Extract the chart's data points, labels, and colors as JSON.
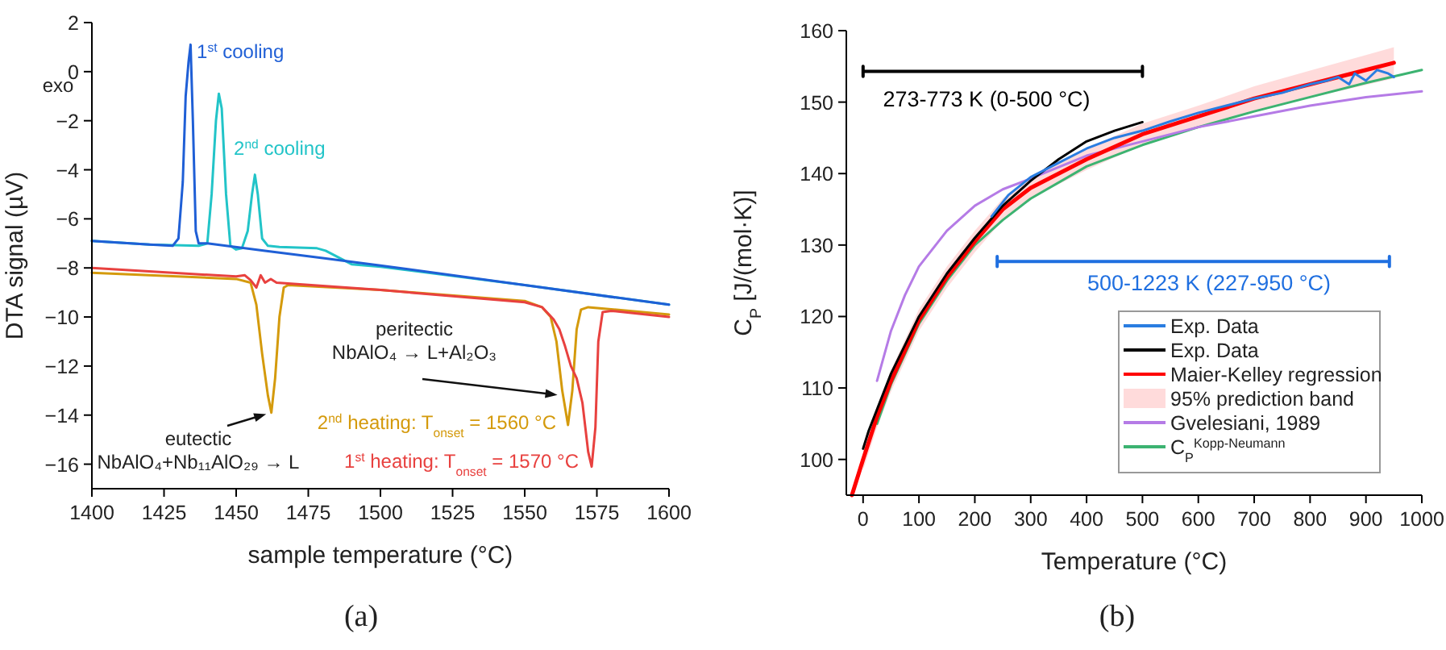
{
  "chart_data": [
    {
      "type": "line",
      "title": "(a)",
      "xlabel": "sample temperature (°C)",
      "ylabel": "DTA signal (µV)",
      "xlim": [
        1400,
        1600
      ],
      "ylim": [
        -17,
        2
      ],
      "xticks": [
        1400,
        1425,
        1450,
        1475,
        1500,
        1525,
        1550,
        1575,
        1600
      ],
      "yticks": [
        {
          "value": -16,
          "label": "−16"
        },
        {
          "value": -14,
          "label": "−14"
        },
        {
          "value": -12,
          "label": "−12"
        },
        {
          "value": -10,
          "label": "−10"
        },
        {
          "value": -8,
          "label": "−8"
        },
        {
          "value": -6,
          "label": "−6"
        },
        {
          "value": -4,
          "label": "−4"
        },
        {
          "value": -2,
          "label": "−2"
        },
        0,
        2
      ],
      "legend": false,
      "line_style": "solid",
      "marker": "none",
      "annotations": [
        "exo",
        {
          "text": "eutectic\nNbAlO₄+Nb₁₁AlO₂₉ → L",
          "x": 1462,
          "y": -13.9
        },
        {
          "text": "peritectic\nNbAlO₄ → L+Al₂O₃",
          "x": 1563,
          "y": -13.2
        }
      ],
      "series": [
        {
          "name": "1$^{st}$ cooling",
          "color": "#1f5fd6",
          "x": [
            1400,
            1420,
            1428,
            1430,
            1431.5,
            1432.5,
            1433.5,
            1434.2,
            1435,
            1436,
            1437,
            1440,
            1460,
            1480,
            1500,
            1550,
            1600
          ],
          "values": [
            -6.9,
            -7.05,
            -7.1,
            -6.8,
            -4.5,
            -1.0,
            0.4,
            1.1,
            -2,
            -6.5,
            -7.0,
            -7.0,
            -7.3,
            -7.6,
            -7.9,
            -8.7,
            -9.5
          ]
        },
        {
          "name": "2$^{nd}$ cooling",
          "color": "#22c4c8",
          "x": [
            1400,
            1420,
            1437,
            1440,
            1441.5,
            1443,
            1444,
            1445,
            1446.5,
            1448,
            1450,
            1452,
            1454,
            1455.5,
            1456.5,
            1457.5,
            1459,
            1461,
            1465,
            1478,
            1481,
            1490,
            1500,
            1550,
            1600
          ],
          "values": [
            -6.9,
            -7.05,
            -7.1,
            -7.0,
            -5,
            -2,
            -0.9,
            -1.5,
            -5,
            -7.1,
            -7.25,
            -7.2,
            -6.5,
            -5,
            -4.2,
            -5,
            -6.8,
            -7.1,
            -7.15,
            -7.2,
            -7.3,
            -7.85,
            -7.95,
            -8.7,
            -9.5
          ]
        },
        {
          "name": "1$^{st}$ heating: T$_{onset}$ = 1570 °C",
          "color": "#e8413f",
          "x": [
            1400,
            1450,
            1453,
            1455,
            1457,
            1458.5,
            1460,
            1462,
            1464,
            1470,
            1500,
            1550,
            1556,
            1560,
            1562,
            1564,
            1566,
            1568,
            1570,
            1572,
            1573.2,
            1574.5,
            1575.5,
            1577,
            1580,
            1600
          ],
          "values": [
            -8.0,
            -8.35,
            -8.3,
            -8.5,
            -8.8,
            -8.3,
            -8.6,
            -8.45,
            -8.6,
            -8.65,
            -8.9,
            -9.4,
            -9.6,
            -10.1,
            -10.5,
            -11.2,
            -12.0,
            -12.5,
            -13.5,
            -15.5,
            -16.1,
            -14.5,
            -11,
            -9.8,
            -9.75,
            -10.0
          ]
        },
        {
          "name": "2$^{nd}$ heating: T$_{onset}$ = 1560 °C",
          "color": "#d49a0c",
          "x": [
            1400,
            1450,
            1455,
            1457,
            1459,
            1461,
            1462.2,
            1463.5,
            1465,
            1466.5,
            1468,
            1500,
            1550,
            1556,
            1559,
            1561,
            1563,
            1565,
            1566.5,
            1568,
            1569.5,
            1572,
            1600
          ],
          "values": [
            -8.2,
            -8.45,
            -8.6,
            -9.5,
            -11.5,
            -13.2,
            -13.9,
            -12.5,
            -10,
            -8.8,
            -8.7,
            -8.9,
            -9.35,
            -9.6,
            -10,
            -11,
            -13,
            -14.4,
            -13,
            -10.5,
            -9.7,
            -9.6,
            -9.9
          ]
        }
      ]
    },
    {
      "type": "line",
      "title": "(b)",
      "xlabel": "Temperature (°C)",
      "ylabel": "C$_{P}$ [J/(mol·K)]",
      "xlim": [
        -30,
        1000
      ],
      "ylim": [
        95,
        160
      ],
      "xticks": [
        0,
        100,
        200,
        300,
        400,
        500,
        600,
        700,
        800,
        900,
        1000
      ],
      "yticks": [
        100,
        110,
        120,
        130,
        140,
        150,
        160
      ],
      "legend": "bottom right",
      "line_style": "solid",
      "marker": "none",
      "annotations": [
        "273-773 K (0-500 °C)",
        "500-1223 K (227-950 °C)",
        "95% prediction band"
      ],
      "series": [
        {
          "name": "Exp. Data",
          "color": "#2a7de1",
          "x": [
            230,
            260,
            300,
            350,
            400,
            450,
            500,
            550,
            600,
            650,
            700,
            750,
            800,
            830,
            850,
            870,
            880,
            900,
            920,
            940,
            950
          ],
          "values": [
            134,
            137,
            139.5,
            141.5,
            143.5,
            145,
            146,
            147.3,
            148.5,
            149.5,
            150.5,
            151.3,
            152.5,
            153,
            153.5,
            152.5,
            154,
            153,
            154.5,
            154,
            153.5
          ]
        },
        {
          "name": "Exp. Data",
          "color": "#000000",
          "x": [
            0,
            10,
            30,
            50,
            75,
            100,
            150,
            200,
            250,
            300,
            350,
            400,
            450,
            500
          ],
          "values": [
            101.5,
            104,
            108,
            112,
            116,
            120,
            126,
            131,
            135.5,
            139,
            142,
            144.5,
            146,
            147.2
          ]
        },
        {
          "name": "Maier-Kelley regression",
          "color": "#ff0000",
          "x": [
            -20,
            0,
            25,
            50,
            100,
            150,
            200,
            250,
            300,
            400,
            500,
            600,
            700,
            800,
            900,
            950
          ],
          "values": [
            95,
            100,
            106,
            111,
            119.5,
            125.5,
            130.5,
            135,
            138,
            142,
            145.5,
            148,
            150.5,
            152.5,
            154.5,
            155.5
          ],
          "lower": [
            null,
            98.5,
            104.5,
            109.5,
            118,
            124,
            129,
            133.5,
            136.5,
            140.5,
            144,
            146.5,
            148.8,
            150.6,
            152.4,
            153.3
          ],
          "upper": [
            null,
            101.5,
            107.5,
            112.5,
            121,
            127,
            132,
            136.5,
            139.5,
            143.5,
            147,
            149.5,
            152.2,
            154.4,
            156.6,
            157.7
          ]
        },
        {
          "color": "#000000",
          "x": [
            0,
            0,
            0,
            500,
            500,
            500
          ],
          "values": [
            153.6,
            155,
            154.3,
            154.3,
            153.6,
            155
          ]
        },
        {
          "color": "#1f6fe0",
          "x": [
            240,
            240,
            240,
            942,
            942,
            942
          ],
          "values": [
            127,
            128.4,
            127.7,
            127.7,
            127,
            128.4
          ]
        },
        {
          "name": "Gvelesiani, 1989",
          "color": "#b57be6",
          "x": [
            25,
            50,
            75,
            100,
            150,
            200,
            250,
            300,
            400,
            500,
            600,
            700,
            800,
            900,
            1000
          ],
          "values": [
            111,
            118,
            123,
            127,
            132,
            135.5,
            137.8,
            139.3,
            142.5,
            144.5,
            146.5,
            148,
            149.5,
            150.7,
            151.5
          ]
        },
        {
          "name": "C$_{P}$$^{Kopp-Neumann}$",
          "color": "#3cb371",
          "x": [
            25,
            50,
            100,
            150,
            200,
            250,
            300,
            400,
            500,
            600,
            700,
            800,
            900,
            1000
          ],
          "values": [
            105,
            110.5,
            119,
            125,
            130,
            133.5,
            136.5,
            141,
            144,
            146.5,
            148.7,
            150.7,
            152.7,
            154.5
          ]
        }
      ]
    }
  ]
}
